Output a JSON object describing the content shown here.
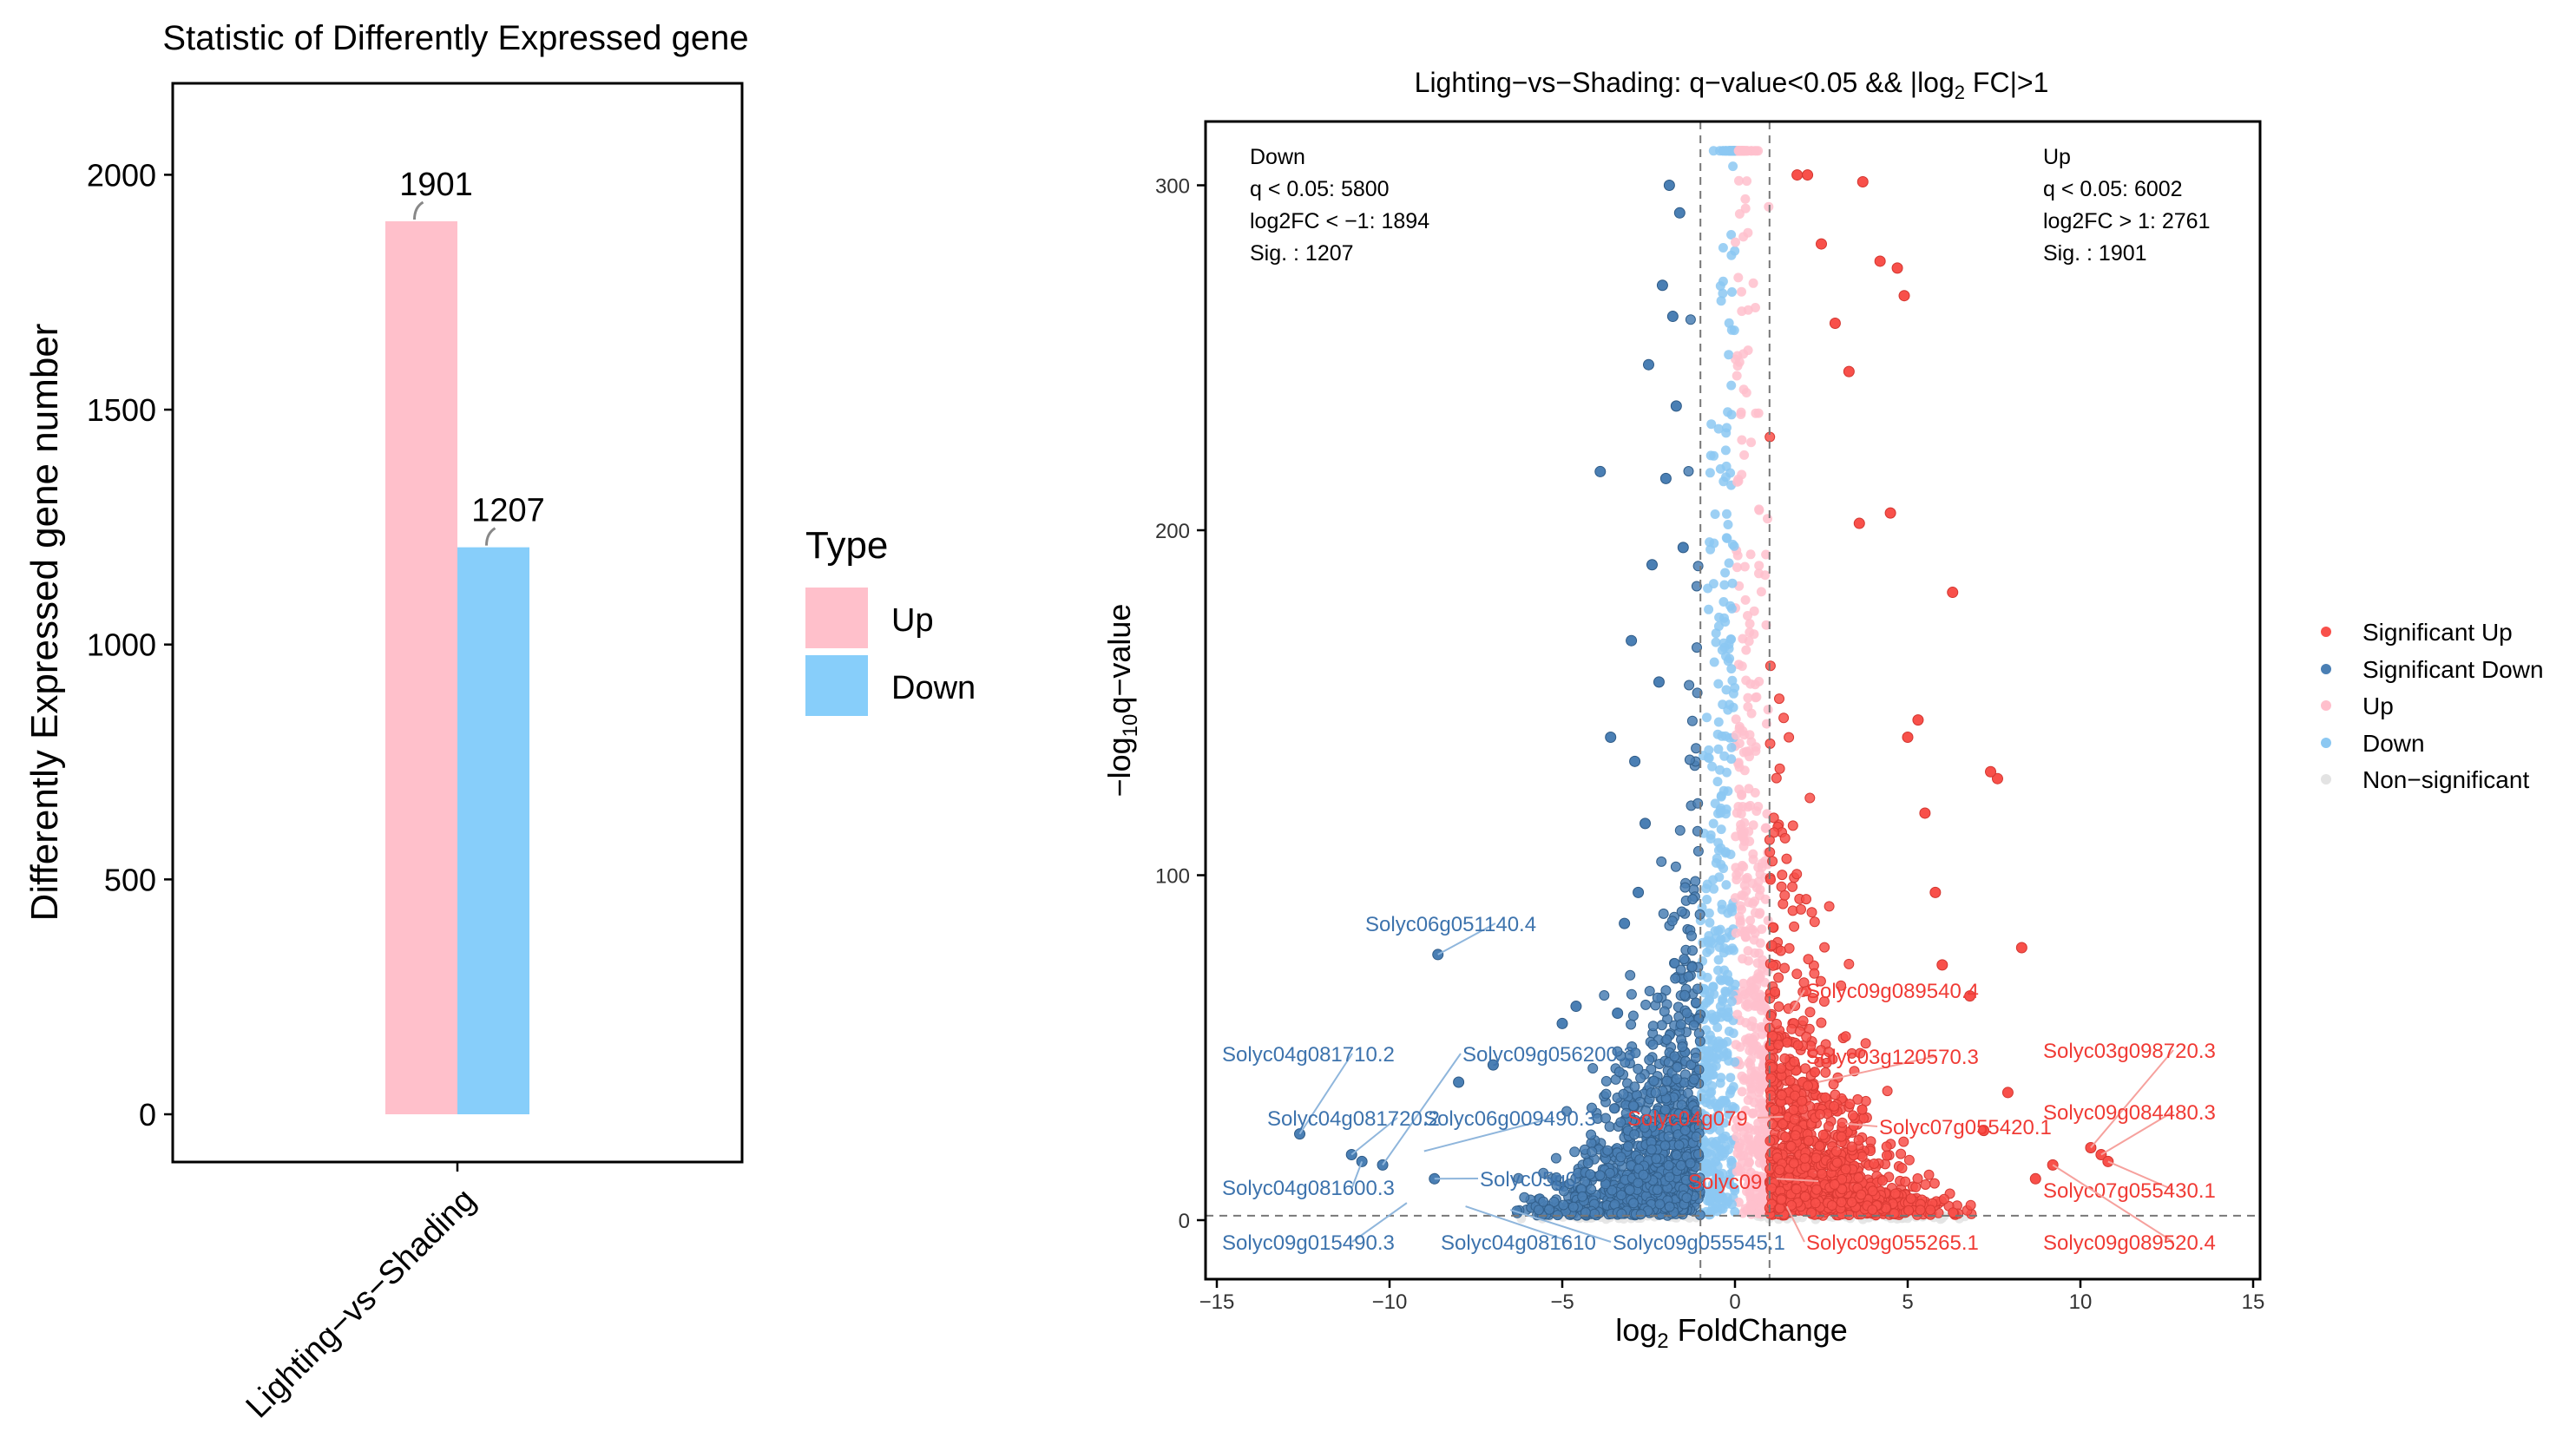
{
  "chart_data": [
    {
      "type": "bar",
      "title": "Statistic of Differently Expressed gene",
      "xlabel": "",
      "ylabel": "Differently Expressed gene number",
      "categories": [
        "Lighting−vs−Shading"
      ],
      "series": [
        {
          "name": "Up",
          "values": [
            1901
          ],
          "color": "#ffc0cb"
        },
        {
          "name": "Down",
          "values": [
            1207
          ],
          "color": "#87cefa"
        }
      ],
      "data_labels": [
        "1901",
        "1207"
      ],
      "ylim": [
        -100,
        2250
      ],
      "yticks": [
        0,
        500,
        1000,
        1500,
        2000
      ],
      "legend": {
        "title": "Type",
        "position": "right",
        "entries": [
          "Up",
          "Down"
        ]
      },
      "grid": false
    },
    {
      "type": "scatter",
      "title": "Lighting−vs−Shading: q−value<0.05 && |log",
      "title_sub": "2",
      "title_tail": " FC|>1",
      "xlabel": "log",
      "xlabel_sub": "2",
      "xlabel_tail": " FoldChange",
      "ylabel": "−log",
      "ylabel_sub": "10",
      "ylabel_tail": "q−value",
      "xlim": [
        -15.2,
        15.3
      ],
      "ylim": [
        -15,
        320
      ],
      "xticks": [
        -15,
        -10,
        -5,
        0,
        5,
        10,
        15
      ],
      "xtick_labels": [
        "−15",
        "−10",
        "−5",
        "0",
        "5",
        "10",
        "15"
      ],
      "yticks": [
        0,
        100,
        200,
        300
      ],
      "thresholds": {
        "log2fc": [
          -1,
          1
        ],
        "neg_log10_q": 1.3
      },
      "grid": false,
      "legend": {
        "position": "right",
        "entries": [
          {
            "name": "Significant Up",
            "color": "#f8504a"
          },
          {
            "name": "Significant Down",
            "color": "#4a7fb4"
          },
          {
            "name": "Up",
            "color": "#ffbfcc"
          },
          {
            "name": "Down",
            "color": "#8cc8f2"
          },
          {
            "name": "Non−significant",
            "color": "#e3e3e3"
          }
        ]
      },
      "annotations": {
        "down": [
          "Down",
          "q < 0.05: 5800",
          "log2FC < −1: 1894",
          "Sig. : 1207"
        ],
        "up": [
          "Up",
          "q < 0.05: 6002",
          "log2FC > 1: 2761",
          "Sig. : 1901"
        ]
      },
      "outlier_points_down": [
        {
          "x": -8.6,
          "y": 77
        },
        {
          "x": -3.9,
          "y": 217
        },
        {
          "x": -12.6,
          "y": 25
        },
        {
          "x": -11.1,
          "y": 19
        },
        {
          "x": -10.8,
          "y": 17
        },
        {
          "x": -10.2,
          "y": 16
        },
        {
          "x": -8.7,
          "y": 12
        },
        {
          "x": -8.0,
          "y": 40
        },
        {
          "x": -7.0,
          "y": 45
        },
        {
          "x": -5.0,
          "y": 57
        },
        {
          "x": -4.6,
          "y": 62
        },
        {
          "x": -3.4,
          "y": 60
        },
        {
          "x": -3.6,
          "y": 140
        },
        {
          "x": -3.0,
          "y": 168
        },
        {
          "x": -2.5,
          "y": 248
        },
        {
          "x": -2.1,
          "y": 271
        },
        {
          "x": -1.9,
          "y": 300
        },
        {
          "x": -1.7,
          "y": 236
        },
        {
          "x": -1.5,
          "y": 195
        },
        {
          "x": -2.4,
          "y": 190
        },
        {
          "x": -2.8,
          "y": 95
        },
        {
          "x": -2.2,
          "y": 156
        },
        {
          "x": -1.8,
          "y": 262
        },
        {
          "x": -2.6,
          "y": 115
        },
        {
          "x": -3.2,
          "y": 86
        },
        {
          "x": -2.0,
          "y": 215
        },
        {
          "x": -1.6,
          "y": 292
        },
        {
          "x": -2.9,
          "y": 133
        }
      ],
      "outlier_points_up": [
        {
          "x": 1.8,
          "y": 303
        },
        {
          "x": 2.1,
          "y": 303
        },
        {
          "x": 3.7,
          "y": 301
        },
        {
          "x": 4.2,
          "y": 278
        },
        {
          "x": 4.7,
          "y": 276
        },
        {
          "x": 4.9,
          "y": 268
        },
        {
          "x": 2.5,
          "y": 283
        },
        {
          "x": 3.3,
          "y": 246
        },
        {
          "x": 6.3,
          "y": 182
        },
        {
          "x": 7.6,
          "y": 128
        },
        {
          "x": 7.4,
          "y": 130
        },
        {
          "x": 8.3,
          "y": 79
        },
        {
          "x": 10.3,
          "y": 21
        },
        {
          "x": 10.6,
          "y": 19
        },
        {
          "x": 10.8,
          "y": 17
        },
        {
          "x": 9.2,
          "y": 16
        },
        {
          "x": 8.7,
          "y": 12
        },
        {
          "x": 7.9,
          "y": 37
        },
        {
          "x": 7.2,
          "y": 26
        },
        {
          "x": 6.8,
          "y": 65
        },
        {
          "x": 5.8,
          "y": 95
        },
        {
          "x": 5.3,
          "y": 145
        },
        {
          "x": 5.0,
          "y": 140
        },
        {
          "x": 4.5,
          "y": 205
        },
        {
          "x": 3.6,
          "y": 202
        },
        {
          "x": 2.9,
          "y": 260
        },
        {
          "x": 5.5,
          "y": 118
        },
        {
          "x": 6.0,
          "y": 74
        }
      ],
      "gene_labels_down": [
        {
          "text": "Solyc06g051140.4",
          "x": -8.6,
          "y": 77
        },
        {
          "text": "Solyc04g081710.2",
          "x": -12.6,
          "y": 25
        },
        {
          "text": "Solyc09g056200.3",
          "x": -10.2,
          "y": 16
        },
        {
          "text": "Solyc04g081720.2",
          "x": -11.1,
          "y": 19
        },
        {
          "text": "Solyc06g009490.3",
          "x": -9.0,
          "y": 20
        },
        {
          "text": "Solyc04g081600.3",
          "x": -10.8,
          "y": 17
        },
        {
          "text": "Solyc05g0",
          "x": -8.7,
          "y": 12
        },
        {
          "text": "Solyc09g015490.3",
          "x": -9.5,
          "y": 5
        },
        {
          "text": "Solyc04g081610",
          "x": -7.8,
          "y": 4
        },
        {
          "text": "Solyc09g055545.1",
          "x": -6.5,
          "y": 3
        }
      ],
      "gene_labels_up": [
        {
          "text": "Solyc09g089540.4",
          "x": 1.6,
          "y": 60
        },
        {
          "text": "Solyc03g098720.3",
          "x": 10.3,
          "y": 21
        },
        {
          "text": "Solyc03g120570.3",
          "x": 2.4,
          "y": 40
        },
        {
          "text": "Solyc09g084480.3",
          "x": 10.6,
          "y": 19
        },
        {
          "text": "Solyc04g079",
          "x": 1.4,
          "y": 30
        },
        {
          "text": "Solyc07g055420.1",
          "x": 3.2,
          "y": 28
        },
        {
          "text": "Solyc09",
          "x": 1.2,
          "y": 12
        },
        {
          "text": "Solyc07g055430.1",
          "x": 10.8,
          "y": 17
        },
        {
          "text": "Solyc09g055265.1",
          "x": 1.5,
          "y": 4
        },
        {
          "text": "Solyc09g089520.4",
          "x": 9.2,
          "y": 16
        }
      ]
    }
  ]
}
